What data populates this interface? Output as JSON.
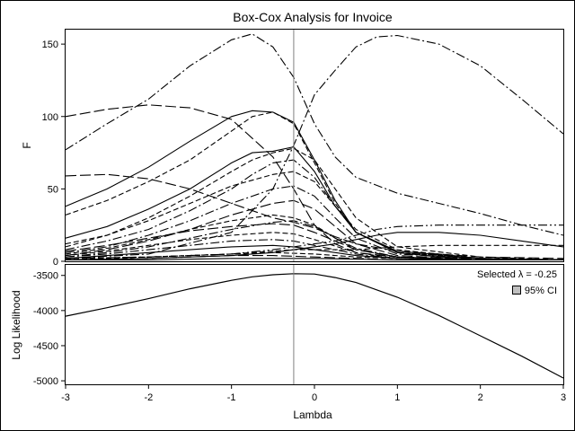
{
  "chart_data": {
    "type": "line",
    "title": "Box-Cox Analysis for Invoice",
    "xlabel": "Lambda",
    "xlim": [
      -3,
      3
    ],
    "xticks": [
      "-3",
      "-2",
      "-1",
      "0",
      "1",
      "2",
      "3"
    ],
    "selected_lambda": -0.25,
    "panels": [
      {
        "name": "F panel",
        "ylabel": "F",
        "ylim": [
          0,
          160
        ],
        "yticks": [
          "0",
          "50",
          "100",
          "150"
        ],
        "series": [
          {
            "dash": "dashdot",
            "x": [
              -3,
              -2.5,
              -2,
              -1.5,
              -1,
              -0.75,
              -0.5,
              -0.25,
              0,
              0.25,
              0.5,
              1,
              1.5,
              2,
              2.5,
              3
            ],
            "values": [
              77,
              95,
              112,
              135,
              153,
              157,
              148,
              127,
              95,
              72,
              58,
              47,
              40,
              33,
              25,
              18
            ]
          },
          {
            "dash": "dashdot",
            "x": [
              -3,
              -2,
              -1,
              -0.5,
              -0.25,
              0,
              0.25,
              0.5,
              0.75,
              1,
              1.5,
              2,
              2.5,
              3
            ],
            "values": [
              2,
              5,
              20,
              50,
              80,
              115,
              132,
              148,
              155,
              156,
              150,
              135,
              112,
              88
            ]
          },
          {
            "dash": "longdash",
            "x": [
              -3,
              -2.5,
              -2,
              -1.5,
              -1,
              -0.5,
              -0.25,
              0,
              0.25,
              0.5,
              1,
              1.5,
              2,
              3
            ],
            "values": [
              100,
              105,
              108,
              106,
              98,
              72,
              50,
              25,
              12,
              6,
              3,
              2,
              2,
              1
            ]
          },
          {
            "dash": "solid",
            "x": [
              -3,
              -2.5,
              -2,
              -1.5,
              -1,
              -0.75,
              -0.5,
              -0.25,
              0,
              0.25,
              0.5,
              1,
              1.5,
              2,
              3
            ],
            "values": [
              38,
              50,
              65,
              83,
              100,
              104,
              103,
              96,
              70,
              42,
              20,
              6,
              3,
              2,
              1
            ]
          },
          {
            "dash": "dashed",
            "x": [
              -3,
              -2.5,
              -2,
              -1.5,
              -1,
              -0.75,
              -0.5,
              -0.25,
              0,
              0.25,
              0.5,
              1,
              2,
              3
            ],
            "values": [
              32,
              42,
              55,
              70,
              90,
              100,
              103,
              95,
              68,
              40,
              20,
              6,
              2,
              1
            ]
          },
          {
            "dash": "longdash",
            "x": [
              -3,
              -2.5,
              -2,
              -1.5,
              -1,
              -0.5,
              -0.25,
              0,
              0.25,
              0.5,
              1,
              2,
              3
            ],
            "values": [
              59,
              60,
              57,
              50,
              40,
              30,
              27,
              23,
              17,
              12,
              7,
              3,
              2
            ]
          },
          {
            "dash": "solid",
            "x": [
              -3,
              -2.5,
              -2,
              -1.5,
              -1,
              -0.75,
              -0.5,
              -0.25,
              0,
              0.25,
              0.5,
              1,
              2,
              3
            ],
            "values": [
              16,
              24,
              36,
              50,
              68,
              75,
              76,
              79,
              62,
              38,
              20,
              7,
              2,
              1
            ]
          },
          {
            "dash": "dashed",
            "x": [
              -3,
              -2.5,
              -2,
              -1.5,
              -1,
              -0.75,
              -0.5,
              -0.25,
              0,
              0.25,
              0.5,
              1,
              2,
              3
            ],
            "values": [
              10,
              18,
              30,
              45,
              62,
              70,
              75,
              78,
              70,
              50,
              30,
              10,
              3,
              1
            ]
          },
          {
            "dash": "dashdot",
            "x": [
              -3,
              -2.5,
              -2,
              -1.5,
              -1,
              -0.75,
              -0.5,
              -0.25,
              0,
              0.25,
              0.5,
              1,
              2,
              3
            ],
            "values": [
              8,
              14,
              22,
              35,
              50,
              60,
              68,
              70,
              58,
              38,
              20,
              6,
              2,
              1
            ]
          },
          {
            "dash": "dashed",
            "x": [
              -3,
              -2.5,
              -2,
              -1.5,
              -1,
              -0.5,
              -0.25,
              0,
              0.25,
              0.5,
              1,
              2,
              3
            ],
            "values": [
              12,
              18,
              28,
              40,
              52,
              60,
              62,
              55,
              38,
              22,
              8,
              2,
              1
            ]
          },
          {
            "dash": "dashdot",
            "x": [
              -3,
              -2.5,
              -2,
              -1.5,
              -1,
              -0.5,
              -0.25,
              0,
              0.25,
              0.5,
              1,
              2,
              3
            ],
            "values": [
              6,
              10,
              18,
              28,
              40,
              50,
              52,
              45,
              30,
              16,
              5,
              2,
              1
            ]
          },
          {
            "dash": "longdash",
            "x": [
              -3,
              -2.5,
              -2,
              -1.5,
              -1,
              -0.5,
              -0.25,
              0,
              0.25,
              0.5,
              1,
              2,
              3
            ],
            "values": [
              4,
              8,
              14,
              22,
              32,
              40,
              42,
              36,
              24,
              12,
              4,
              1,
              1
            ]
          },
          {
            "dash": "dashed",
            "x": [
              -3,
              -2.5,
              -2,
              -1.5,
              -1,
              -0.5,
              -0.25,
              0,
              0.25,
              0.5,
              1,
              2,
              3
            ],
            "values": [
              5,
              9,
              15,
              22,
              28,
              32,
              30,
              25,
              16,
              8,
              3,
              1,
              1
            ]
          },
          {
            "dash": "dashdot",
            "x": [
              -3,
              -2.5,
              -2,
              -1.5,
              -1,
              -0.5,
              -0.25,
              0,
              0.25,
              0.5,
              1,
              2,
              3
            ],
            "values": [
              3,
              6,
              10,
              16,
              22,
              27,
              28,
              24,
              16,
              9,
              3,
              1,
              1
            ]
          },
          {
            "dash": "dashdotdot",
            "x": [
              -3,
              -2,
              -1,
              -0.5,
              -0.25,
              0,
              0.25,
              0.5,
              0.75,
              1,
              1.5,
              2,
              2.5,
              3
            ],
            "values": [
              2,
              3,
              5,
              8,
              10,
              12,
              14,
              18,
              22,
              24,
              25,
              25,
              25,
              25
            ]
          },
          {
            "dash": "solid",
            "x": [
              -3,
              -2,
              -1,
              -0.5,
              -0.25,
              0,
              0.25,
              0.5,
              0.75,
              1,
              1.5,
              2,
              2.5,
              3
            ],
            "values": [
              1,
              2,
              4,
              6,
              8,
              10,
              12,
              15,
              18,
              20,
              20,
              18,
              14,
              10
            ]
          },
          {
            "dash": "dashed",
            "x": [
              -3,
              -2,
              -1,
              -0.5,
              -0.25,
              0,
              0.5,
              1,
              1.5,
              2,
              2.5,
              3
            ],
            "values": [
              2,
              3,
              5,
              7,
              8,
              8,
              8,
              10,
              11,
              11,
              11,
              11
            ]
          },
          {
            "dash": "longdash",
            "x": [
              -3,
              -2.5,
              -2,
              -1.5,
              -1,
              -0.5,
              -0.25,
              0,
              0.5,
              1,
              2,
              3
            ],
            "values": [
              7,
              11,
              16,
              21,
              24,
              26,
              25,
              20,
              8,
              3,
              1,
              1
            ]
          },
          {
            "dash": "dashed",
            "x": [
              -3,
              -2.5,
              -2,
              -1.5,
              -1,
              -0.5,
              -0.25,
              0,
              0.5,
              1,
              2,
              3
            ],
            "values": [
              4,
              7,
              11,
              15,
              18,
              20,
              19,
              15,
              6,
              2,
              1,
              1
            ]
          },
          {
            "dash": "dashdot",
            "x": [
              -3,
              -2.5,
              -2,
              -1.5,
              -1,
              -0.5,
              -0.25,
              0,
              0.5,
              1,
              2,
              3
            ],
            "values": [
              3,
              5,
              8,
              11,
              14,
              15,
              14,
              11,
              5,
              2,
              1,
              1
            ]
          },
          {
            "dash": "solid",
            "x": [
              -3,
              -2.5,
              -2,
              -1.5,
              -1,
              -0.5,
              -0.25,
              0,
              0.5,
              1,
              2,
              3
            ],
            "values": [
              2,
              4,
              6,
              8,
              10,
              11,
              10,
              8,
              4,
              2,
              1,
              1
            ]
          },
          {
            "dash": "dashed",
            "x": [
              -3,
              -2,
              -1,
              -0.5,
              0,
              0.5,
              1,
              2,
              3
            ],
            "values": [
              1,
              3,
              5,
              6,
              5,
              3,
              2,
              1,
              1
            ]
          },
          {
            "dash": "longdash",
            "x": [
              -3,
              -2,
              -1,
              -0.5,
              0,
              0.5,
              1,
              2,
              3
            ],
            "values": [
              1,
              2,
              4,
              4,
              3,
              2,
              1,
              1,
              1
            ]
          },
          {
            "dash": "solid",
            "x": [
              -3,
              -2,
              -1,
              0,
              1,
              2,
              3
            ],
            "values": [
              1,
              1,
              2,
              2,
              1,
              1,
              1
            ]
          }
        ]
      },
      {
        "name": "Log Likelihood panel",
        "ylabel": "Log Likelihood",
        "ylim": [
          -5050,
          -3350
        ],
        "yticks": [
          "-3500",
          "-4000",
          "-4500",
          "-5000"
        ],
        "series": [
          {
            "dash": "solid",
            "x": [
              -3,
              -2.5,
              -2,
              -1.5,
              -1,
              -0.75,
              -0.5,
              -0.25,
              0,
              0.25,
              0.5,
              1,
              1.5,
              2,
              2.5,
              3
            ],
            "values": [
              -4080,
              -3960,
              -3830,
              -3690,
              -3570,
              -3520,
              -3490,
              -3475,
              -3480,
              -3530,
              -3600,
              -3810,
              -4070,
              -4360,
              -4650,
              -4960
            ]
          }
        ],
        "legend": {
          "selected_label": "Selected λ = -0.25",
          "ci_label": "95% CI",
          "position": "top-right"
        }
      }
    ]
  }
}
